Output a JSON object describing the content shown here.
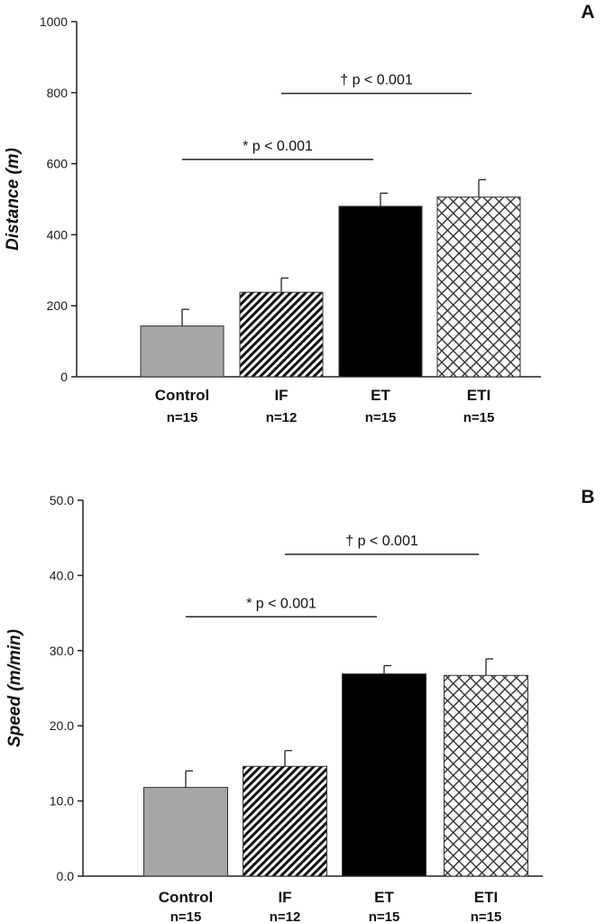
{
  "chart_data": [
    {
      "type": "bar",
      "panel": "A",
      "ylabel": "Distance (m)",
      "ylim": [
        0,
        1000
      ],
      "yticks": [
        0,
        200,
        400,
        600,
        800,
        1000
      ],
      "ytick_labels": [
        "0",
        "200",
        "400",
        "600",
        "800",
        "1000"
      ],
      "categories": [
        "Control",
        "IF",
        "ET",
        "ETI"
      ],
      "n_labels": [
        "n=15",
        "n=12",
        "n=15",
        "n=15"
      ],
      "values": [
        143,
        238,
        480,
        506
      ],
      "errors": [
        47,
        40,
        37,
        49
      ],
      "patterns": [
        "solid-gray",
        "diagonal-lines",
        "solid-black",
        "crosshatch"
      ],
      "significance": [
        {
          "label": "* p < 0.001",
          "from": "Control",
          "to": "ET",
          "y": 612
        },
        {
          "label": "† p < 0.001",
          "from": "IF",
          "to": "ETI",
          "y": 798
        }
      ]
    },
    {
      "type": "bar",
      "panel": "B",
      "ylabel": "Speed (m/min)",
      "ylim": [
        0,
        50
      ],
      "yticks": [
        0,
        10,
        20,
        30,
        40,
        50
      ],
      "ytick_labels": [
        "0.0",
        "10.0",
        "20.0",
        "30.0",
        "40.0",
        "50.0"
      ],
      "categories": [
        "Control",
        "IF",
        "ET",
        "ETI"
      ],
      "n_labels": [
        "n=15",
        "n=12",
        "n=15",
        "n=15"
      ],
      "values": [
        11.8,
        14.6,
        26.9,
        26.7
      ],
      "errors": [
        2.2,
        2.1,
        1.1,
        2.2
      ],
      "patterns": [
        "solid-gray",
        "diagonal-lines",
        "solid-black",
        "crosshatch"
      ],
      "significance": [
        {
          "label": "* p < 0.001",
          "from": "Control",
          "to": "ET",
          "y": 34.5
        },
        {
          "label": "† p < 0.001",
          "from": "IF",
          "to": "ETI",
          "y": 42.8
        }
      ]
    }
  ],
  "colors": {
    "control": "#a6a6a6",
    "et": "#000000",
    "axis": "#222222"
  }
}
